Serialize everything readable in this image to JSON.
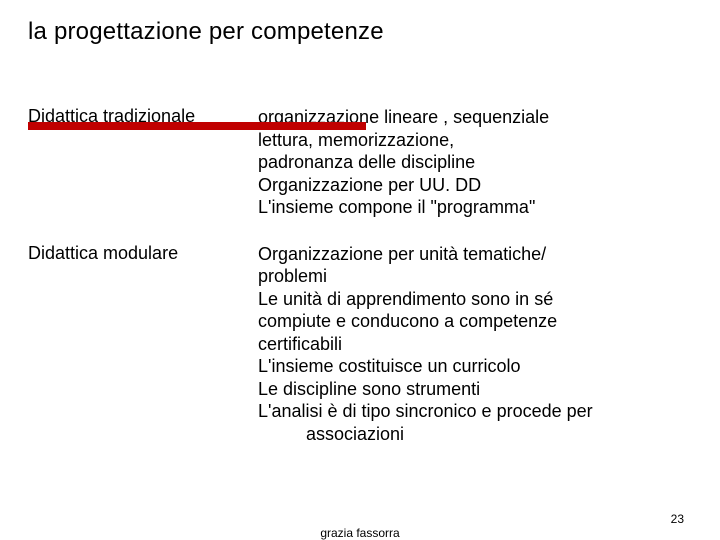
{
  "title": "la progettazione per competenze",
  "accent_color": "#c00000",
  "background_color": "#ffffff",
  "text_color": "#000000",
  "title_fontsize": 24,
  "body_fontsize": 18,
  "rows": [
    {
      "label": "Didattica tradizionale",
      "lines": [
        "organizzazione lineare , sequenziale",
        "lettura, memorizzazione,",
        "padronanza delle discipline",
        "Organizzazione per UU. DD",
        "L'insieme compone il \"programma\""
      ],
      "indent": [
        false,
        false,
        false,
        false,
        false
      ]
    },
    {
      "label": "Didattica modulare",
      "lines": [
        "Organizzazione per unità tematiche/",
        "problemi",
        "Le unità di apprendimento sono in sé",
        "compiute e conducono a competenze",
        "certificabili",
        "L'insieme costituisce un curricolo",
        "Le discipline sono strumenti",
        "L'analisi è di tipo sincronico e procede per",
        "associazioni"
      ],
      "indent": [
        false,
        false,
        false,
        false,
        false,
        false,
        false,
        false,
        true
      ]
    }
  ],
  "footer": {
    "author": "grazia fassorra",
    "page": "23"
  }
}
